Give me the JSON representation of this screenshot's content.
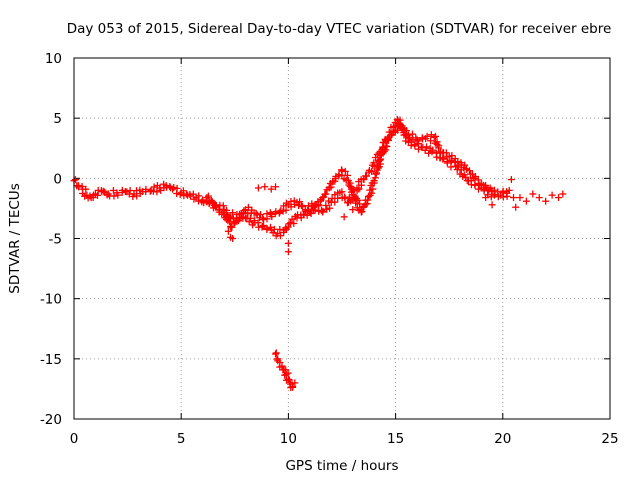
{
  "chart_data": {
    "type": "scatter",
    "title": "Day 053 of 2015, Sidereal Day-to-day VTEC variation (SDTVAR) for receiver ebre",
    "xlabel": "GPS time / hours",
    "ylabel": "SDTVAR / TECUs",
    "xlim": [
      0,
      25
    ],
    "ylim": [
      -20,
      10
    ],
    "xticks": [
      0,
      5,
      10,
      15,
      20,
      25
    ],
    "yticks": [
      10,
      5,
      0,
      -5,
      -10,
      -15,
      -20
    ],
    "xtick_labels": [
      "0",
      "5",
      "10",
      "15",
      "20",
      "25"
    ],
    "ytick_labels": [
      "10",
      "5",
      "0",
      "-5",
      "-10",
      "-15",
      "-20"
    ],
    "grid": true,
    "marker": "plus",
    "series_color": "#ff0000",
    "series": [
      {
        "name": "main-track",
        "points": [
          [
            0.0,
            -0.2
          ],
          [
            0.2,
            -0.6
          ],
          [
            0.4,
            -0.9
          ],
          [
            0.6,
            -1.4
          ],
          [
            0.8,
            -1.6
          ],
          [
            1.0,
            -1.3
          ],
          [
            1.3,
            -1.1
          ],
          [
            1.6,
            -1.3
          ],
          [
            2.0,
            -1.2
          ],
          [
            2.4,
            -1.1
          ],
          [
            2.8,
            -1.3
          ],
          [
            3.2,
            -1.1
          ],
          [
            3.6,
            -1.0
          ],
          [
            4.0,
            -0.8
          ],
          [
            4.3,
            -0.6
          ],
          [
            4.6,
            -0.9
          ],
          [
            5.0,
            -1.2
          ],
          [
            5.3,
            -1.4
          ],
          [
            5.7,
            -1.6
          ],
          [
            6.0,
            -1.8
          ],
          [
            6.3,
            -2.1
          ],
          [
            6.6,
            -2.4
          ],
          [
            7.0,
            -3.0
          ],
          [
            7.3,
            -3.2
          ],
          [
            7.6,
            -3.0
          ],
          [
            8.0,
            -3.3
          ],
          [
            8.4,
            -3.7
          ],
          [
            8.8,
            -4.0
          ],
          [
            9.2,
            -4.3
          ],
          [
            9.5,
            -4.6
          ],
          [
            9.8,
            -4.3
          ],
          [
            10.1,
            -3.7
          ],
          [
            10.4,
            -3.3
          ],
          [
            10.7,
            -3.0
          ],
          [
            11.0,
            -2.8
          ],
          [
            11.3,
            -2.2
          ],
          [
            11.6,
            -1.6
          ],
          [
            11.9,
            -0.8
          ],
          [
            12.2,
            0.0
          ],
          [
            12.5,
            0.6
          ],
          [
            12.8,
            -0.2
          ],
          [
            13.1,
            -1.6
          ],
          [
            13.4,
            -2.8
          ],
          [
            13.7,
            -1.8
          ],
          [
            14.0,
            -0.2
          ],
          [
            14.3,
            1.6
          ],
          [
            14.6,
            3.2
          ],
          [
            14.9,
            4.3
          ],
          [
            15.1,
            4.8
          ],
          [
            15.3,
            4.2
          ],
          [
            15.6,
            3.6
          ],
          [
            16.0,
            3.2
          ],
          [
            16.4,
            3.3
          ],
          [
            16.8,
            3.4
          ],
          [
            17.1,
            2.2
          ],
          [
            17.5,
            1.8
          ],
          [
            17.9,
            1.4
          ],
          [
            18.3,
            0.8
          ],
          [
            18.7,
            0.0
          ],
          [
            19.1,
            -0.6
          ],
          [
            19.5,
            -1.1
          ],
          [
            19.9,
            -1.4
          ],
          [
            20.3,
            -1.0
          ]
        ]
      },
      {
        "name": "secondary-track",
        "points": [
          [
            6.2,
            -1.6
          ],
          [
            6.6,
            -2.2
          ],
          [
            7.0,
            -2.6
          ],
          [
            7.3,
            -4.0
          ],
          [
            7.6,
            -3.6
          ],
          [
            8.0,
            -2.6
          ],
          [
            8.4,
            -2.9
          ],
          [
            8.8,
            -3.3
          ],
          [
            9.2,
            -3.0
          ],
          [
            9.6,
            -2.8
          ],
          [
            10.0,
            -2.2
          ],
          [
            10.4,
            -2.0
          ],
          [
            10.8,
            -2.6
          ],
          [
            11.2,
            -2.3
          ],
          [
            11.6,
            -2.8
          ],
          [
            12.0,
            -2.0
          ],
          [
            12.4,
            -1.2
          ],
          [
            12.8,
            -2.0
          ],
          [
            13.2,
            -0.8
          ],
          [
            13.6,
            0.2
          ],
          [
            14.0,
            1.0
          ],
          [
            14.4,
            2.6
          ],
          [
            14.8,
            3.6
          ],
          [
            15.2,
            4.5
          ],
          [
            15.6,
            3.0
          ],
          [
            16.2,
            2.6
          ],
          [
            16.7,
            2.2
          ],
          [
            17.2,
            1.6
          ],
          [
            17.8,
            1.0
          ],
          [
            18.4,
            -0.2
          ],
          [
            19.0,
            -0.8
          ],
          [
            19.6,
            -1.4
          ]
        ]
      },
      {
        "name": "isolated-segments",
        "points": [
          [
            7.2,
            -4.4
          ],
          [
            7.3,
            -4.9
          ],
          [
            7.4,
            -5.0
          ],
          [
            8.6,
            -0.8
          ],
          [
            8.9,
            -0.7
          ],
          [
            9.2,
            -0.9
          ],
          [
            9.4,
            -0.7
          ],
          [
            10.0,
            -5.4
          ],
          [
            10.0,
            -6.1
          ],
          [
            18.9,
            -0.6
          ],
          [
            19.2,
            -1.6
          ],
          [
            19.5,
            -2.2
          ],
          [
            20.0,
            -1.2
          ],
          [
            20.2,
            -1.5
          ],
          [
            20.4,
            -0.1
          ],
          [
            20.5,
            -1.6
          ],
          [
            20.6,
            -2.4
          ],
          [
            20.8,
            -1.6
          ],
          [
            21.1,
            -1.9
          ],
          [
            21.4,
            -1.3
          ],
          [
            21.7,
            -1.6
          ],
          [
            22.0,
            -1.9
          ],
          [
            22.3,
            -1.4
          ],
          [
            22.6,
            -1.6
          ],
          [
            22.8,
            -1.3
          ],
          [
            12.6,
            -3.2
          ],
          [
            13.0,
            -2.6
          ]
        ]
      },
      {
        "name": "outlier-cluster",
        "points": [
          [
            9.4,
            -14.6
          ],
          [
            9.5,
            -15.0
          ],
          [
            9.6,
            -15.3
          ],
          [
            9.7,
            -15.6
          ],
          [
            9.8,
            -15.9
          ],
          [
            9.9,
            -16.3
          ],
          [
            10.0,
            -16.7
          ],
          [
            10.1,
            -17.1
          ],
          [
            10.2,
            -17.3
          ],
          [
            10.3,
            -17.0
          ]
        ]
      }
    ]
  }
}
